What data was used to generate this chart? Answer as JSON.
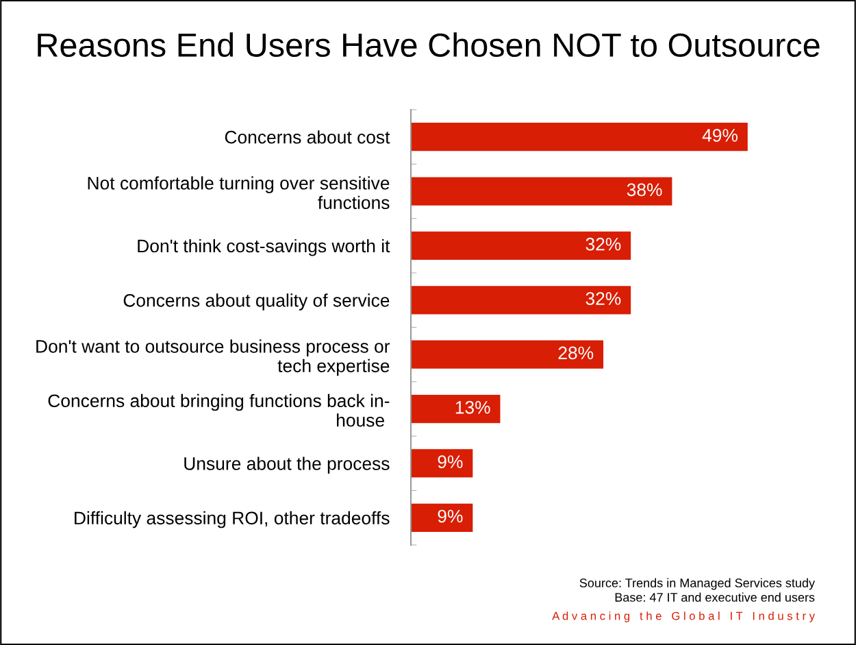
{
  "chart_data": {
    "type": "bar",
    "orientation": "horizontal",
    "title": "Reasons End Users Have Chosen NOT to Outsource",
    "categories": [
      "Concerns about cost",
      "Not comfortable turning over sensitive\nfunctions",
      "Don't think cost-savings worth it",
      "Concerns about quality of service",
      "Don't want to outsource business process or\ntech expertise",
      "Concerns about bringing functions back in-\nhouse ",
      "Unsure about the process",
      "Difficulty assessing ROI, other tradeoffs"
    ],
    "values": [
      49,
      38,
      32,
      32,
      28,
      13,
      9,
      9
    ],
    "value_labels": [
      "49%",
      "38%",
      "32%",
      "32%",
      "28%",
      "13%",
      "9%",
      "9%"
    ],
    "color": "#d81e05",
    "grid": false,
    "legend": false,
    "tick_labels": "y",
    "annotations": [
      "Source: Trends in Managed Services study",
      "Base: 47 IT and executive end users",
      "A d v a n c i n g   t h e   G l o b a l   I T   I n d u s t r y"
    ]
  }
}
